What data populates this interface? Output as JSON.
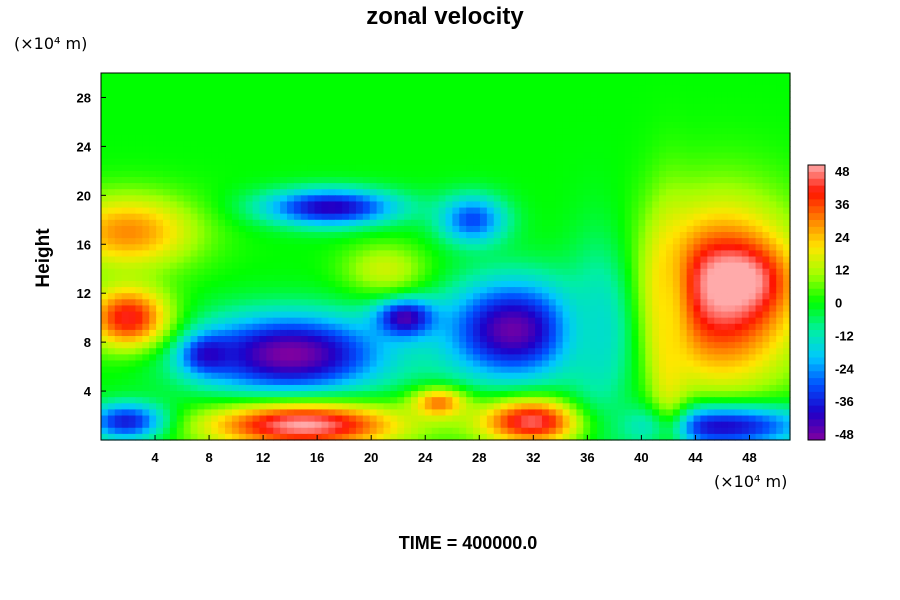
{
  "chart_data": {
    "type": "heatmap",
    "title": "zonal velocity",
    "ylabel": "Height",
    "y_units": "(×10⁴ m)",
    "x_units": "(×10⁴ m)",
    "xlim": [
      0,
      51
    ],
    "ylim": [
      0,
      30
    ],
    "x_ticks": [
      "4",
      "8",
      "12",
      "16",
      "20",
      "24",
      "28",
      "32",
      "36",
      "40",
      "44",
      "48"
    ],
    "y_ticks": [
      "4",
      "8",
      "12",
      "16",
      "20",
      "24",
      "28"
    ],
    "colorbar": {
      "min": -48,
      "max": 48,
      "ticks": [
        "48",
        "36",
        "24",
        "12",
        "0",
        "-12",
        "-24",
        "-36",
        "-48"
      ]
    },
    "background_value": 0,
    "features": [
      {
        "x": 14,
        "y": 7,
        "rx": 7,
        "ry": 3.2,
        "value": -48
      },
      {
        "x": 30.5,
        "y": 9,
        "rx": 5,
        "ry": 4,
        "value": -46
      },
      {
        "x": 22.5,
        "y": 10,
        "rx": 2.2,
        "ry": 1.6,
        "value": -44
      },
      {
        "x": 17,
        "y": 19,
        "rx": 5,
        "ry": 1.5,
        "value": -40
      },
      {
        "x": 27.5,
        "y": 18,
        "rx": 2.5,
        "ry": 2,
        "value": -30
      },
      {
        "x": 46,
        "y": 1.2,
        "rx": 6,
        "ry": 1.8,
        "value": -46
      },
      {
        "x": 2,
        "y": 1.5,
        "rx": 3,
        "ry": 1.5,
        "value": -38
      },
      {
        "x": 8,
        "y": 7,
        "rx": 2,
        "ry": 1.5,
        "value": -40
      },
      {
        "x": 46,
        "y": 12,
        "rx": 5.5,
        "ry": 7,
        "value": 45
      },
      {
        "x": 47,
        "y": 13,
        "rx": 3,
        "ry": 2.5,
        "value": 52
      },
      {
        "x": 15,
        "y": 1.2,
        "rx": 7,
        "ry": 1.8,
        "value": 48
      },
      {
        "x": 32,
        "y": 1.5,
        "rx": 4,
        "ry": 1.8,
        "value": 44
      },
      {
        "x": 2,
        "y": 17,
        "rx": 5,
        "ry": 3,
        "value": 28
      },
      {
        "x": 2,
        "y": 10,
        "rx": 3,
        "ry": 2.5,
        "value": 40
      },
      {
        "x": 25,
        "y": 3,
        "rx": 2,
        "ry": 1.2,
        "value": 30
      },
      {
        "x": 42,
        "y": 9,
        "rx": 1.5,
        "ry": 9,
        "value": 20
      },
      {
        "x": 37,
        "y": 9,
        "rx": 2.5,
        "ry": 8,
        "value": -14
      },
      {
        "x": 21,
        "y": 14,
        "rx": 3,
        "ry": 2,
        "value": 14
      }
    ],
    "grid": false
  },
  "footer": {
    "time_label": "TIME = 400000.0"
  }
}
